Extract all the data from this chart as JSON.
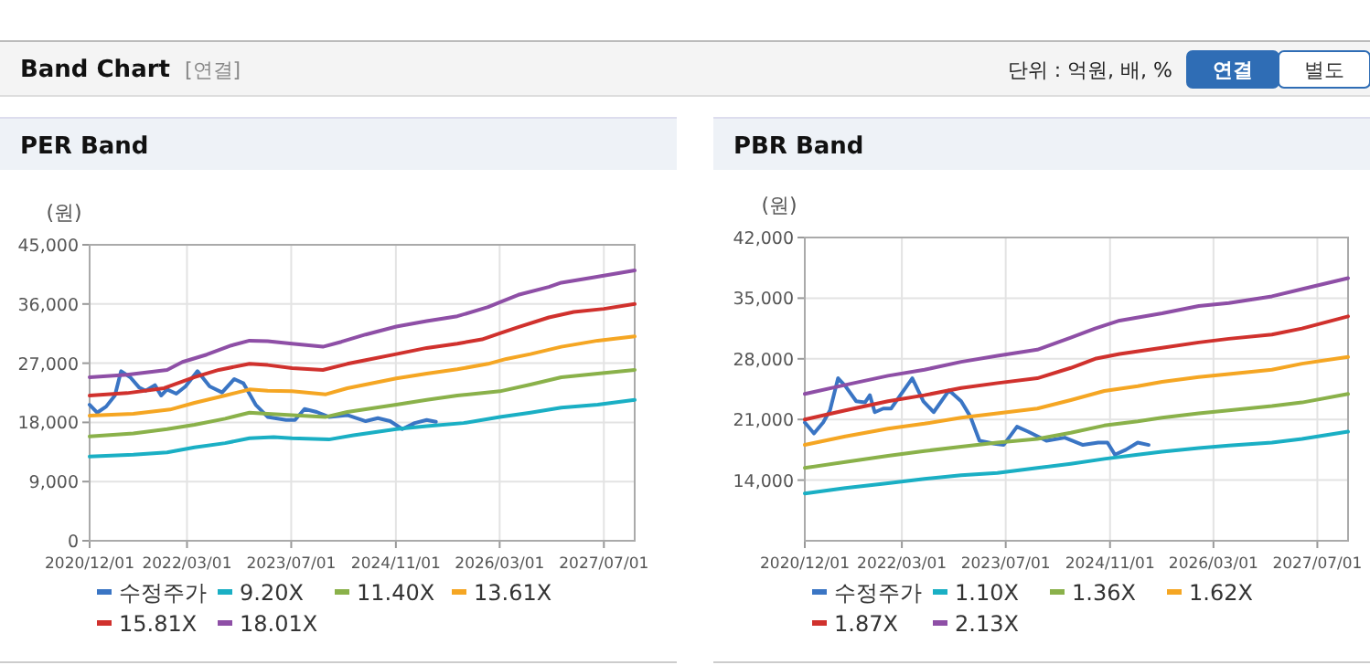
{
  "chart_data": [
    {
      "type": "line",
      "title": "PER Band",
      "ylabel": "(원)",
      "annotations": [
        "Band Chart",
        "[연결]",
        "단위 : 억원, 배, %",
        "연결",
        "별도"
      ],
      "legend": "bottom",
      "grid": true,
      "marker": "none",
      "line_style": "solid",
      "xlim": [
        "2020-12-01",
        "2027-11-22"
      ],
      "ylim": [
        0,
        45000
      ],
      "xticks": [
        {
          "value": "2020-12-01",
          "label": "2020/12/01"
        },
        {
          "value": "2022-03-01",
          "label": "2022/03/01"
        },
        {
          "value": "2023-07-01",
          "label": "2023/07/01"
        },
        {
          "value": "2024-11-01",
          "label": "2024/11/01"
        },
        {
          "value": "2026-03-01",
          "label": "2026/03/01"
        },
        {
          "value": "2027-07-01",
          "label": "2027/07/01"
        }
      ],
      "yticks": [
        {
          "value": 0,
          "label": "0"
        },
        {
          "value": 9000,
          "label": "9,000"
        },
        {
          "value": 18000,
          "label": "18,000"
        },
        {
          "value": 27000,
          "label": "27,000"
        },
        {
          "value": 36000,
          "label": "36,000"
        },
        {
          "value": 45000,
          "label": "45,000"
        }
      ],
      "series": [
        {
          "name": "수정주가",
          "color": "#3a75c4",
          "x": [
            "2020-12-01",
            "2021-01-05",
            "2021-02-16",
            "2021-03-29",
            "2021-04-27",
            "2021-06-09",
            "2021-07-21",
            "2021-08-20",
            "2021-10-02",
            "2021-10-31",
            "2021-11-28",
            "2022-01-10",
            "2022-02-22",
            "2022-04-19",
            "2022-06-15",
            "2022-08-12",
            "2022-10-08",
            "2022-11-20",
            "2023-01-16",
            "2023-03-13",
            "2023-06-07",
            "2023-07-19",
            "2023-09-01",
            "2023-10-28",
            "2023-12-24",
            "2024-03-19",
            "2024-06-13",
            "2024-08-09",
            "2024-10-05",
            "2024-12-01",
            "2025-01-28",
            "2025-03-25",
            "2025-05-07"
          ],
          "values": [
            20690,
            19480,
            20400,
            22080,
            25790,
            24860,
            23290,
            22820,
            23660,
            22080,
            23010,
            22360,
            23470,
            25790,
            23470,
            22550,
            24590,
            23940,
            20690,
            18830,
            18370,
            18370,
            20040,
            19580,
            18830,
            19110,
            18190,
            18650,
            18190,
            16980,
            17900,
            18370,
            18090
          ]
        },
        {
          "name": "9.20X",
          "color": "#1aafc4",
          "x": [
            "2020-12-01",
            "2021-06-23",
            "2021-11-28",
            "2022-04-05",
            "2022-08-26",
            "2022-12-18",
            "2023-04-10",
            "2023-07-05",
            "2023-12-24",
            "2024-04-17",
            "2024-11-03",
            "2025-03-25",
            "2025-09-13",
            "2026-03-02",
            "2026-07-23",
            "2026-12-14",
            "2027-06-02",
            "2027-11-22"
          ],
          "values": [
            12800,
            13080,
            13450,
            14200,
            14845,
            15590,
            15770,
            15590,
            15400,
            16050,
            16980,
            17440,
            17900,
            18830,
            19480,
            20230,
            20690,
            21430
          ]
        },
        {
          "name": "11.40X",
          "color": "#8ab14a",
          "x": [
            "2020-12-01",
            "2021-06-23",
            "2021-11-28",
            "2022-04-05",
            "2022-08-26",
            "2022-12-18",
            "2023-03-13",
            "2023-07-05",
            "2023-12-10",
            "2024-03-19",
            "2024-11-03",
            "2025-03-25",
            "2025-08-15",
            "2026-03-02",
            "2026-07-23",
            "2026-12-14",
            "2027-06-02",
            "2027-11-22"
          ],
          "values": [
            15865,
            16330,
            16980,
            17630,
            18560,
            19480,
            19300,
            19110,
            18830,
            19580,
            20690,
            21430,
            22080,
            22730,
            23750,
            24870,
            25420,
            25980
          ]
        },
        {
          "name": "13.61X",
          "color": "#f5a623",
          "x": [
            "2020-12-01",
            "2021-06-23",
            "2021-12-12",
            "2022-04-05",
            "2022-08-26",
            "2022-12-18",
            "2023-03-13",
            "2023-07-05",
            "2023-12-10",
            "2024-03-19",
            "2024-11-03",
            "2025-03-25",
            "2025-08-15",
            "2026-01-06",
            "2026-04-01",
            "2026-07-23",
            "2026-12-14",
            "2027-06-02",
            "2027-11-22"
          ],
          "values": [
            19020,
            19300,
            19950,
            20970,
            22080,
            23010,
            22820,
            22730,
            22270,
            23195,
            24680,
            25420,
            26070,
            26900,
            27650,
            28390,
            29500,
            30430,
            31080
          ]
        },
        {
          "name": "15.81X",
          "color": "#d0312d",
          "x": [
            "2020-12-01",
            "2021-05-25",
            "2021-11-14",
            "2022-04-05",
            "2022-07-28",
            "2022-12-18",
            "2023-03-13",
            "2023-07-05",
            "2023-11-26",
            "2024-03-19",
            "2024-06-13",
            "2024-11-03",
            "2025-03-25",
            "2025-08-15",
            "2025-12-08",
            "2026-03-02",
            "2026-05-27",
            "2026-10-17",
            "2027-02-10",
            "2027-07-01",
            "2027-11-22"
          ],
          "values": [
            22080,
            22450,
            23200,
            24870,
            25980,
            26900,
            26720,
            26260,
            25980,
            26900,
            27460,
            28390,
            29320,
            29970,
            30620,
            31545,
            32470,
            33960,
            34790,
            35260,
            36000
          ]
        },
        {
          "name": "18.01X",
          "color": "#8e4fa6",
          "x": [
            "2020-12-01",
            "2021-05-25",
            "2021-11-28",
            "2022-02-08",
            "2022-06-01",
            "2022-09-24",
            "2022-12-18",
            "2023-03-13",
            "2023-07-05",
            "2023-11-26",
            "2024-02-20",
            "2024-06-13",
            "2024-11-03",
            "2025-03-25",
            "2025-08-15",
            "2026-01-06",
            "2026-03-02",
            "2026-05-27",
            "2026-10-17",
            "2026-12-14",
            "2027-05-05",
            "2027-11-22"
          ],
          "values": [
            24866,
            25237,
            25980,
            27185,
            28300,
            29690,
            30430,
            30340,
            29970,
            29500,
            30250,
            31360,
            32570,
            33400,
            34140,
            35535,
            36275,
            37390,
            38600,
            39245,
            39990,
            41100
          ]
        }
      ]
    },
    {
      "type": "line",
      "title": "PBR Band",
      "ylabel": "(원)",
      "legend": "bottom",
      "grid": true,
      "marker": "none",
      "line_style": "solid",
      "xlim": [
        "2020-12-01",
        "2027-11-22"
      ],
      "ylim": [
        7000,
        42000
      ],
      "xticks": [
        {
          "value": "2020-12-01",
          "label": "2020/12/01"
        },
        {
          "value": "2022-03-01",
          "label": "2022/03/01"
        },
        {
          "value": "2023-07-01",
          "label": "2023/07/01"
        },
        {
          "value": "2024-11-01",
          "label": "2024/11/01"
        },
        {
          "value": "2026-03-01",
          "label": "2026/03/01"
        },
        {
          "value": "2027-07-01",
          "label": "2027/07/01"
        }
      ],
      "yticks": [
        {
          "value": 14000,
          "label": "14,000"
        },
        {
          "value": 21000,
          "label": "21,000"
        },
        {
          "value": 28000,
          "label": "28,000"
        },
        {
          "value": 35000,
          "label": "35,000"
        },
        {
          "value": 42000,
          "label": "42,000"
        }
      ],
      "series": [
        {
          "name": "수정주가",
          "color": "#3a75c4",
          "x": [
            "2020-12-01",
            "2021-01-13",
            "2021-02-25",
            "2021-03-29",
            "2021-05-06",
            "2021-06-09",
            "2021-07-30",
            "2021-09-09",
            "2021-10-02",
            "2021-10-25",
            "2021-12-04",
            "2022-01-10",
            "2022-02-22",
            "2022-04-19",
            "2022-06-10",
            "2022-07-28",
            "2022-10-08",
            "2022-12-04",
            "2023-01-16",
            "2023-02-28",
            "2023-05-09",
            "2023-06-21",
            "2023-08-23",
            "2023-10-14",
            "2024-01-08",
            "2024-04-03",
            "2024-06-27",
            "2024-09-07",
            "2024-10-20",
            "2024-11-24",
            "2025-01-14",
            "2025-03-11",
            "2025-05-01"
          ],
          "values": [
            20650,
            19390,
            20650,
            22050,
            25760,
            24850,
            23100,
            22960,
            23800,
            21840,
            22260,
            22260,
            23800,
            25760,
            23100,
            21840,
            24360,
            23100,
            21350,
            18550,
            18200,
            18060,
            20160,
            19600,
            18550,
            18900,
            18060,
            18340,
            18340,
            16940,
            17500,
            18340,
            18060
          ]
        },
        {
          "name": "1.10X",
          "color": "#1aafc4",
          "x": [
            "2020-12-01",
            "2021-06-09",
            "2021-12-26",
            "2022-06-15",
            "2022-12-04",
            "2023-05-23",
            "2023-11-26",
            "2024-05-01",
            "2024-10-05",
            "2025-03-11",
            "2025-07-03",
            "2025-12-22",
            "2026-05-12",
            "2026-11-30",
            "2027-04-20",
            "2027-11-22"
          ],
          "values": [
            12460,
            13090,
            13650,
            14140,
            14560,
            14840,
            15400,
            15890,
            16450,
            16940,
            17290,
            17710,
            17990,
            18340,
            18760,
            19600
          ]
        },
        {
          "name": "1.36X",
          "color": "#8ab14a",
          "x": [
            "2020-12-01",
            "2021-06-09",
            "2021-12-26",
            "2022-06-15",
            "2022-12-04",
            "2023-05-23",
            "2023-11-26",
            "2024-05-01",
            "2024-10-05",
            "2025-03-11",
            "2025-07-03",
            "2025-12-22",
            "2026-05-12",
            "2026-11-30",
            "2027-04-20",
            "2027-11-22"
          ],
          "values": [
            15400,
            16100,
            16800,
            17360,
            17850,
            18340,
            18760,
            19460,
            20300,
            20790,
            21210,
            21700,
            22050,
            22540,
            22960,
            23940
          ]
        },
        {
          "name": "1.62X",
          "color": "#f5a623",
          "x": [
            "2020-12-01",
            "2021-06-09",
            "2021-12-26",
            "2022-06-15",
            "2022-12-04",
            "2023-05-23",
            "2023-11-26",
            "2024-05-01",
            "2024-10-05",
            "2025-03-11",
            "2025-07-03",
            "2025-12-22",
            "2026-05-12",
            "2026-11-30",
            "2027-04-20",
            "2027-11-22"
          ],
          "values": [
            18060,
            19040,
            19950,
            20510,
            21210,
            21700,
            22260,
            23240,
            24290,
            24850,
            25340,
            25900,
            26250,
            26740,
            27440,
            28210
          ]
        },
        {
          "name": "1.87X",
          "color": "#d0312d",
          "x": [
            "2020-12-01",
            "2021-06-09",
            "2021-12-26",
            "2022-06-15",
            "2022-12-04",
            "2023-05-23",
            "2023-11-26",
            "2024-05-01",
            "2024-08-23",
            "2024-12-16",
            "2025-07-03",
            "2025-12-22",
            "2026-05-12",
            "2026-11-30",
            "2027-04-20",
            "2027-11-22"
          ],
          "values": [
            21000,
            22050,
            23100,
            23800,
            24640,
            25200,
            25760,
            26950,
            28000,
            28560,
            29260,
            29890,
            30310,
            30800,
            31500,
            32900
          ]
        },
        {
          "name": "2.13X",
          "color": "#8e4fa6",
          "x": [
            "2020-12-01",
            "2021-06-09",
            "2021-12-26",
            "2022-06-15",
            "2022-12-04",
            "2023-05-23",
            "2023-11-26",
            "2024-05-01",
            "2024-08-23",
            "2024-12-16",
            "2025-07-03",
            "2025-12-22",
            "2026-05-12",
            "2026-11-30",
            "2027-04-20",
            "2027-11-22"
          ],
          "values": [
            23940,
            24990,
            26040,
            26740,
            27650,
            28350,
            29050,
            30450,
            31500,
            32410,
            33250,
            34090,
            34440,
            35210,
            36050,
            37310
          ]
        }
      ]
    }
  ]
}
